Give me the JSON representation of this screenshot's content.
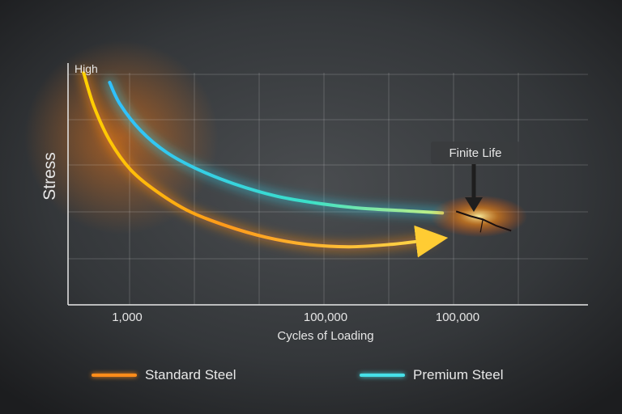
{
  "chart_data": {
    "type": "line",
    "title": "",
    "xlabel": "Cycles of Loading",
    "ylabel": "Stress",
    "y_top_label": "High",
    "x_tick_labels": [
      "1,000",
      "100,000",
      "100,000"
    ],
    "grid": true,
    "legend_position": "bottom",
    "series": [
      {
        "name": "Standard Steel",
        "color": "#ff8c1a",
        "x": [
          0.03,
          0.05,
          0.08,
          0.12,
          0.17,
          0.23,
          0.3,
          0.38,
          0.46,
          0.54,
          0.62,
          0.7
        ],
        "y": [
          0.96,
          0.82,
          0.68,
          0.56,
          0.47,
          0.39,
          0.33,
          0.28,
          0.25,
          0.24,
          0.25,
          0.27
        ]
      },
      {
        "name": "Premium Steel",
        "color": "#46e0e8",
        "x": [
          0.08,
          0.1,
          0.14,
          0.19,
          0.25,
          0.32,
          0.4,
          0.48,
          0.56,
          0.64,
          0.72
        ],
        "y": [
          0.92,
          0.83,
          0.72,
          0.63,
          0.56,
          0.5,
          0.45,
          0.42,
          0.4,
          0.39,
          0.38
        ]
      }
    ],
    "annotation": {
      "text": "Finite Life",
      "x": 0.79,
      "y": 0.38
    }
  },
  "legend": [
    {
      "name": "Standard Steel",
      "color": "#ff8c1a"
    },
    {
      "name": "Premium Steel",
      "color": "#46e0e8"
    }
  ]
}
